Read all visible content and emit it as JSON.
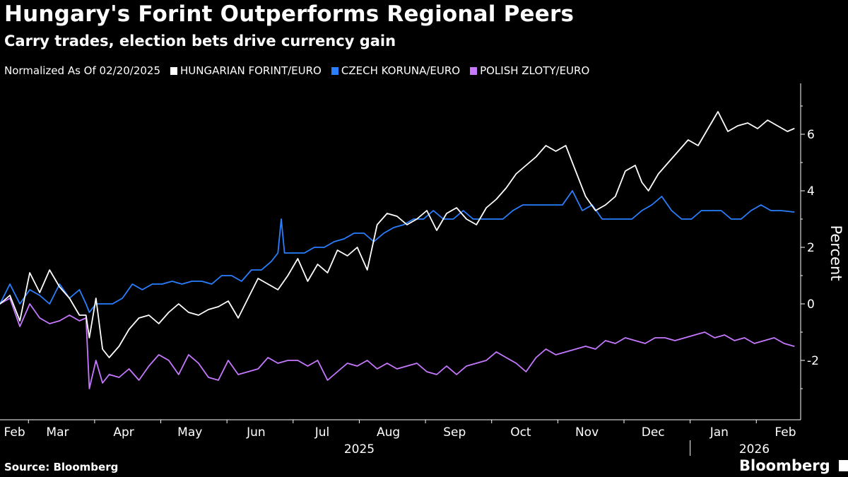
{
  "title": "Hungary's Forint Outperforms Regional Peers",
  "subtitle": "Carry trades, election bets drive currency gain",
  "legend_note": "Normalized As Of 02/20/2025",
  "source": "Source: Bloomberg",
  "brand": "Bloomberg",
  "chart_data": {
    "type": "line",
    "title": "Hungary's Forint Outperforms Regional Peers",
    "subtitle": "Carry trades, election bets drive currency gain",
    "xlabel": "",
    "ylabel": "Percent",
    "ylim": [
      -4.1,
      7.8
    ],
    "yticks": [
      6,
      4,
      2,
      0,
      -2
    ],
    "ytick_labels": [
      "6",
      "4",
      "2",
      "0",
      "-2"
    ],
    "xlim_months": [
      0,
      12.1
    ],
    "month_labels": [
      {
        "label": "Feb",
        "m": 0.22
      },
      {
        "label": "Mar",
        "m": 0.87
      },
      {
        "label": "Apr",
        "m": 1.87
      },
      {
        "label": "May",
        "m": 2.87
      },
      {
        "label": "Jun",
        "m": 3.87
      },
      {
        "label": "Jul",
        "m": 4.87
      },
      {
        "label": "Aug",
        "m": 5.87
      },
      {
        "label": "Sep",
        "m": 6.87
      },
      {
        "label": "Oct",
        "m": 7.87
      },
      {
        "label": "Nov",
        "m": 8.87
      },
      {
        "label": "Dec",
        "m": 9.87
      },
      {
        "label": "Jan",
        "m": 10.87
      },
      {
        "label": "Feb",
        "m": 11.87
      }
    ],
    "month_boundaries": [
      0.43,
      1.43,
      2.43,
      3.43,
      4.43,
      5.43,
      6.43,
      7.43,
      8.43,
      9.43,
      10.43,
      11.43
    ],
    "year_labels": [
      {
        "label": "2025",
        "m": 5.43
      },
      {
        "label": "2026",
        "m": 11.4
      }
    ],
    "year_separator_m": 10.43,
    "legend_position": "top-left",
    "grid": false,
    "series": [
      {
        "name": "HUNGARIAN FORINT/EURO",
        "color": "#ffffff",
        "m": [
          0,
          0.15,
          0.3,
          0.45,
          0.6,
          0.75,
          0.9,
          1.05,
          1.2,
          1.3,
          1.35,
          1.45,
          1.55,
          1.65,
          1.8,
          1.95,
          2.1,
          2.25,
          2.4,
          2.55,
          2.7,
          2.85,
          3.0,
          3.15,
          3.3,
          3.45,
          3.6,
          3.75,
          3.9,
          4.05,
          4.2,
          4.35,
          4.5,
          4.65,
          4.8,
          4.95,
          5.1,
          5.25,
          5.4,
          5.55,
          5.7,
          5.85,
          6.0,
          6.15,
          6.3,
          6.45,
          6.6,
          6.75,
          6.9,
          7.05,
          7.2,
          7.35,
          7.5,
          7.65,
          7.8,
          7.95,
          8.1,
          8.25,
          8.4,
          8.55,
          8.7,
          8.85,
          9.0,
          9.15,
          9.3,
          9.45,
          9.6,
          9.7,
          9.8,
          9.95,
          10.1,
          10.25,
          10.4,
          10.55,
          10.7,
          10.85,
          11.0,
          11.15,
          11.3,
          11.45,
          11.6,
          11.75,
          11.9,
          12.0
        ],
        "values": [
          0,
          0.3,
          -0.6,
          1.1,
          0.4,
          1.2,
          0.6,
          0.2,
          -0.4,
          -0.4,
          -1.2,
          0.2,
          -1.6,
          -1.9,
          -1.5,
          -0.9,
          -0.5,
          -0.4,
          -0.7,
          -0.3,
          0,
          -0.3,
          -0.4,
          -0.2,
          -0.1,
          0.1,
          -0.5,
          0.2,
          0.9,
          0.7,
          0.5,
          1.0,
          1.6,
          0.8,
          1.4,
          1.1,
          1.9,
          1.7,
          2.0,
          1.2,
          2.8,
          3.2,
          3.1,
          2.8,
          3.0,
          3.3,
          2.6,
          3.2,
          3.4,
          3.0,
          2.8,
          3.4,
          3.7,
          4.1,
          4.6,
          4.9,
          5.2,
          5.6,
          5.4,
          5.6,
          4.7,
          3.8,
          3.3,
          3.5,
          3.8,
          4.7,
          4.9,
          4.3,
          4.0,
          4.6,
          5.0,
          5.4,
          5.8,
          5.6,
          6.2,
          6.8,
          6.1,
          6.3,
          6.4,
          6.2,
          6.5,
          6.3,
          6.1,
          6.2
        ]
      },
      {
        "name": "CZECH KORUNA/EURO",
        "color": "#2a7fff",
        "m": [
          0,
          0.15,
          0.3,
          0.45,
          0.6,
          0.75,
          0.9,
          1.05,
          1.2,
          1.3,
          1.35,
          1.45,
          1.55,
          1.7,
          1.85,
          2.0,
          2.15,
          2.3,
          2.45,
          2.6,
          2.75,
          2.9,
          3.05,
          3.2,
          3.35,
          3.5,
          3.65,
          3.8,
          3.95,
          4.1,
          4.2,
          4.25,
          4.3,
          4.45,
          4.6,
          4.75,
          4.9,
          5.05,
          5.2,
          5.35,
          5.5,
          5.65,
          5.8,
          5.95,
          6.1,
          6.25,
          6.4,
          6.55,
          6.7,
          6.85,
          7.0,
          7.15,
          7.3,
          7.45,
          7.6,
          7.75,
          7.9,
          8.05,
          8.2,
          8.35,
          8.5,
          8.65,
          8.8,
          8.95,
          9.1,
          9.25,
          9.4,
          9.55,
          9.7,
          9.85,
          10.0,
          10.15,
          10.3,
          10.45,
          10.6,
          10.75,
          10.9,
          11.05,
          11.2,
          11.35,
          11.5,
          11.65,
          11.8,
          12.0
        ],
        "values": [
          0,
          0.7,
          0,
          0.5,
          0.3,
          0,
          0.7,
          0.2,
          0.5,
          0,
          -0.3,
          0,
          0,
          0,
          0.2,
          0.7,
          0.5,
          0.7,
          0.7,
          0.8,
          0.7,
          0.8,
          0.8,
          0.7,
          1.0,
          1.0,
          0.8,
          1.2,
          1.2,
          1.5,
          1.8,
          3.0,
          1.8,
          1.8,
          1.8,
          2.0,
          2.0,
          2.2,
          2.3,
          2.5,
          2.5,
          2.2,
          2.5,
          2.7,
          2.8,
          3.0,
          3.0,
          3.3,
          3.0,
          3.0,
          3.3,
          3.0,
          3.0,
          3.0,
          3.0,
          3.3,
          3.5,
          3.5,
          3.5,
          3.5,
          3.5,
          4.0,
          3.3,
          3.5,
          3.0,
          3.0,
          3.0,
          3.0,
          3.3,
          3.5,
          3.8,
          3.3,
          3.0,
          3.0,
          3.3,
          3.3,
          3.3,
          3.0,
          3.0,
          3.3,
          3.5,
          3.3,
          3.3,
          3.25
        ]
      },
      {
        "name": "POLISH ZLOTY/EURO",
        "color": "#c678ff",
        "m": [
          0,
          0.15,
          0.3,
          0.45,
          0.6,
          0.75,
          0.9,
          1.05,
          1.2,
          1.3,
          1.35,
          1.45,
          1.55,
          1.65,
          1.8,
          1.95,
          2.1,
          2.25,
          2.4,
          2.55,
          2.7,
          2.85,
          3.0,
          3.15,
          3.3,
          3.45,
          3.6,
          3.75,
          3.9,
          4.05,
          4.2,
          4.35,
          4.5,
          4.65,
          4.8,
          4.95,
          5.1,
          5.25,
          5.4,
          5.55,
          5.7,
          5.85,
          6.0,
          6.15,
          6.3,
          6.45,
          6.6,
          6.75,
          6.9,
          7.05,
          7.2,
          7.35,
          7.5,
          7.65,
          7.8,
          7.95,
          8.1,
          8.25,
          8.4,
          8.55,
          8.7,
          8.85,
          9.0,
          9.15,
          9.3,
          9.45,
          9.6,
          9.75,
          9.9,
          10.05,
          10.2,
          10.35,
          10.5,
          10.65,
          10.8,
          10.95,
          11.1,
          11.25,
          11.4,
          11.55,
          11.7,
          11.85,
          12.0
        ],
        "values": [
          0,
          0.2,
          -0.8,
          0,
          -0.5,
          -0.7,
          -0.6,
          -0.4,
          -0.6,
          -0.5,
          -3.0,
          -2.0,
          -2.8,
          -2.5,
          -2.6,
          -2.3,
          -2.7,
          -2.2,
          -1.8,
          -2.0,
          -2.5,
          -1.8,
          -2.1,
          -2.6,
          -2.7,
          -2.0,
          -2.5,
          -2.4,
          -2.3,
          -1.9,
          -2.1,
          -2.0,
          -2.0,
          -2.2,
          -2.0,
          -2.7,
          -2.4,
          -2.1,
          -2.2,
          -2.0,
          -2.3,
          -2.1,
          -2.3,
          -2.2,
          -2.1,
          -2.4,
          -2.5,
          -2.2,
          -2.5,
          -2.2,
          -2.1,
          -2.0,
          -1.7,
          -1.9,
          -2.1,
          -2.4,
          -1.9,
          -1.6,
          -1.8,
          -1.7,
          -1.6,
          -1.5,
          -1.6,
          -1.3,
          -1.4,
          -1.2,
          -1.3,
          -1.4,
          -1.2,
          -1.2,
          -1.3,
          -1.2,
          -1.1,
          -1.0,
          -1.2,
          -1.1,
          -1.3,
          -1.2,
          -1.4,
          -1.3,
          -1.2,
          -1.4,
          -1.5
        ]
      }
    ]
  }
}
